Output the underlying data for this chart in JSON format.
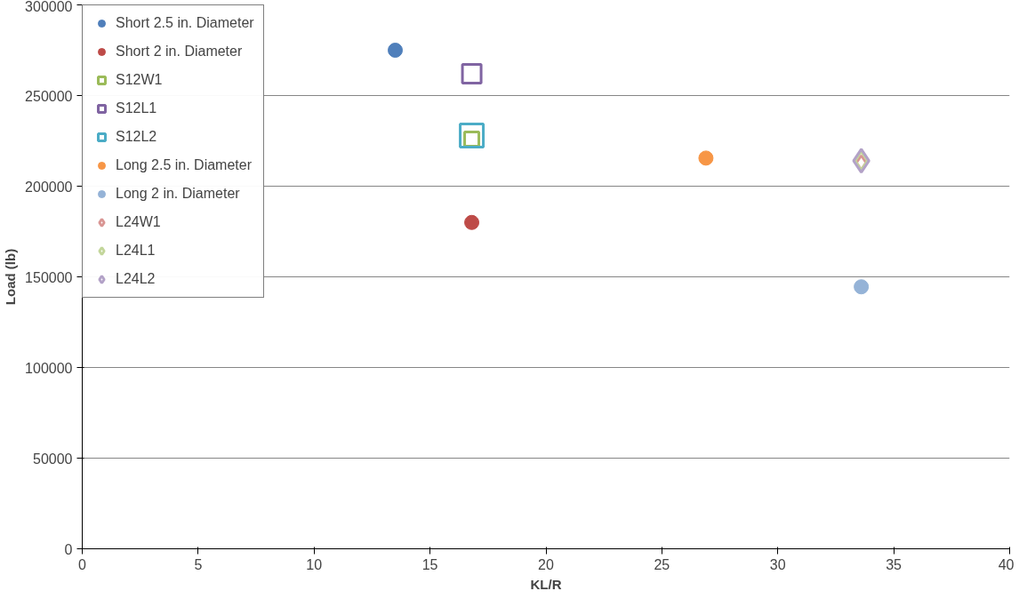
{
  "chart_data": {
    "type": "scatter",
    "xlabel": "KL/R",
    "ylabel": "Load (lb)",
    "xlim": [
      0,
      40
    ],
    "xticks": [
      0,
      5,
      10,
      15,
      20,
      25,
      30,
      35,
      40
    ],
    "ylim": [
      0,
      300000
    ],
    "yticks": [
      0,
      50000,
      100000,
      150000,
      200000,
      250000,
      300000
    ],
    "grid": "y",
    "legend": "top left",
    "series": [
      {
        "name": "Short 2.5 in. Diameter",
        "color": "#4f7fbb",
        "marker": "circle",
        "x": [
          13.5
        ],
        "values": [
          275000
        ]
      },
      {
        "name": "Short 2 in. Diameter",
        "color": "#be4b48",
        "marker": "circle",
        "x": [
          16.8
        ],
        "values": [
          180000
        ]
      },
      {
        "name": "S12W1",
        "color": "#9bbb59",
        "marker": "square",
        "x": [
          16.8
        ],
        "values": [
          226000
        ]
      },
      {
        "name": "S12L1",
        "color": "#8064a2",
        "marker": "square",
        "x": [
          16.8
        ],
        "values": [
          262000
        ]
      },
      {
        "name": "S12L2",
        "color": "#4bacc6",
        "marker": "square",
        "x": [
          16.8
        ],
        "values": [
          228000
        ]
      },
      {
        "name": "Long 2.5 in. Diameter",
        "color": "#f79646",
        "marker": "circle",
        "x": [
          26.9
        ],
        "values": [
          215500
        ]
      },
      {
        "name": "Long 2 in. Diameter",
        "color": "#95b3d7",
        "marker": "circle",
        "x": [
          33.6
        ],
        "values": [
          144500
        ]
      },
      {
        "name": "L24W1",
        "color": "#d99694",
        "marker": "diamond",
        "x": [
          33.6
        ],
        "values": [
          213000
        ]
      },
      {
        "name": "L24L1",
        "color": "#c3d69b",
        "marker": "diamond",
        "x": [
          33.6
        ],
        "values": [
          214000
        ]
      },
      {
        "name": "L24L2",
        "color": "#b3a2c7",
        "marker": "diamond",
        "x": [
          33.6
        ],
        "values": [
          214000
        ]
      }
    ]
  }
}
